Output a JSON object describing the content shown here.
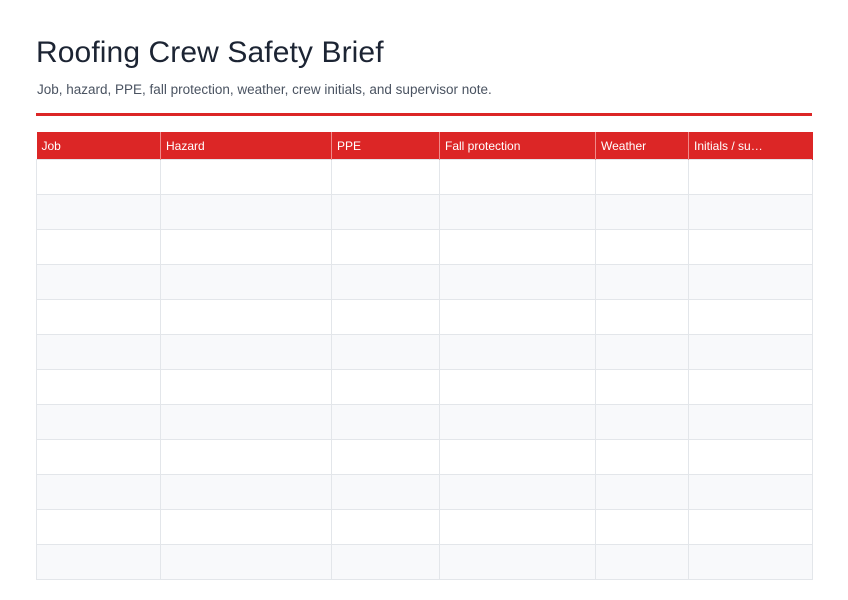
{
  "title": "Roofing Crew Safety Brief",
  "subtitle": "Job, hazard, PPE, fall protection, weather, crew initials, and supervisor note.",
  "accent_color": "#dc2626",
  "table": {
    "columns": [
      "Job",
      "Hazard",
      "PPE",
      "Fall protection",
      "Weather",
      "Initials / su…"
    ],
    "row_count": 12
  }
}
